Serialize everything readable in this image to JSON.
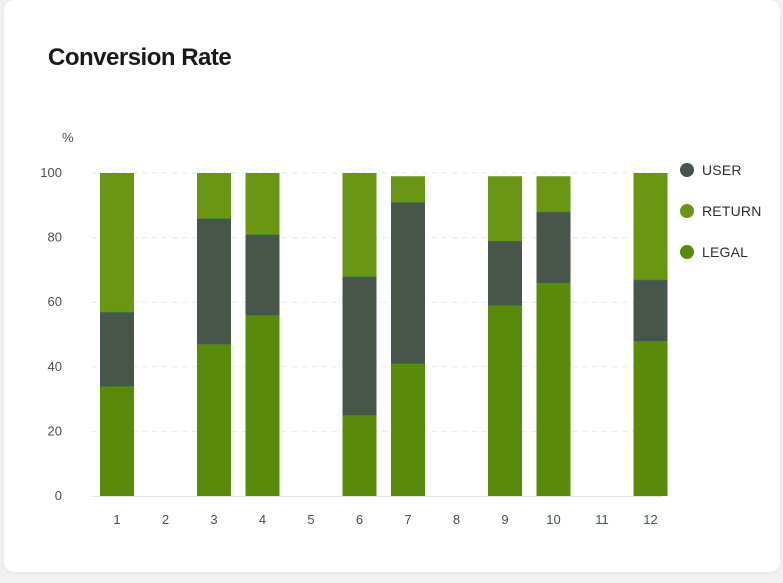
{
  "chart_data": {
    "type": "bar",
    "stacked": true,
    "title": "Conversion Rate",
    "ylabel": "%",
    "xlabel": "",
    "ylim": [
      0,
      100
    ],
    "yticks": [
      0,
      20,
      40,
      60,
      80,
      100
    ],
    "grid": "horizontal-dashed",
    "legend_position": "right",
    "categories": [
      "1",
      "2",
      "3",
      "4",
      "5",
      "6",
      "7",
      "8",
      "9",
      "10",
      "11",
      "12"
    ],
    "series": [
      {
        "name": "LEGAL",
        "color": "#5a8a0a",
        "values": [
          34,
          null,
          47,
          56,
          null,
          25,
          41,
          null,
          59,
          66,
          null,
          48
        ]
      },
      {
        "name": "USER",
        "color": "#47554a",
        "values": [
          23,
          null,
          39,
          25,
          null,
          43,
          50,
          null,
          20,
          22,
          null,
          19
        ]
      },
      {
        "name": "RETURN",
        "color": "#699613",
        "values": [
          43,
          null,
          14,
          19,
          null,
          32,
          8,
          null,
          20,
          11,
          null,
          33
        ]
      }
    ]
  },
  "legend": {
    "items": [
      {
        "label": "USER",
        "color": "#47554a"
      },
      {
        "label": "RETURN",
        "color": "#699613"
      },
      {
        "label": "LEGAL",
        "color": "#5a8a0a"
      }
    ]
  }
}
